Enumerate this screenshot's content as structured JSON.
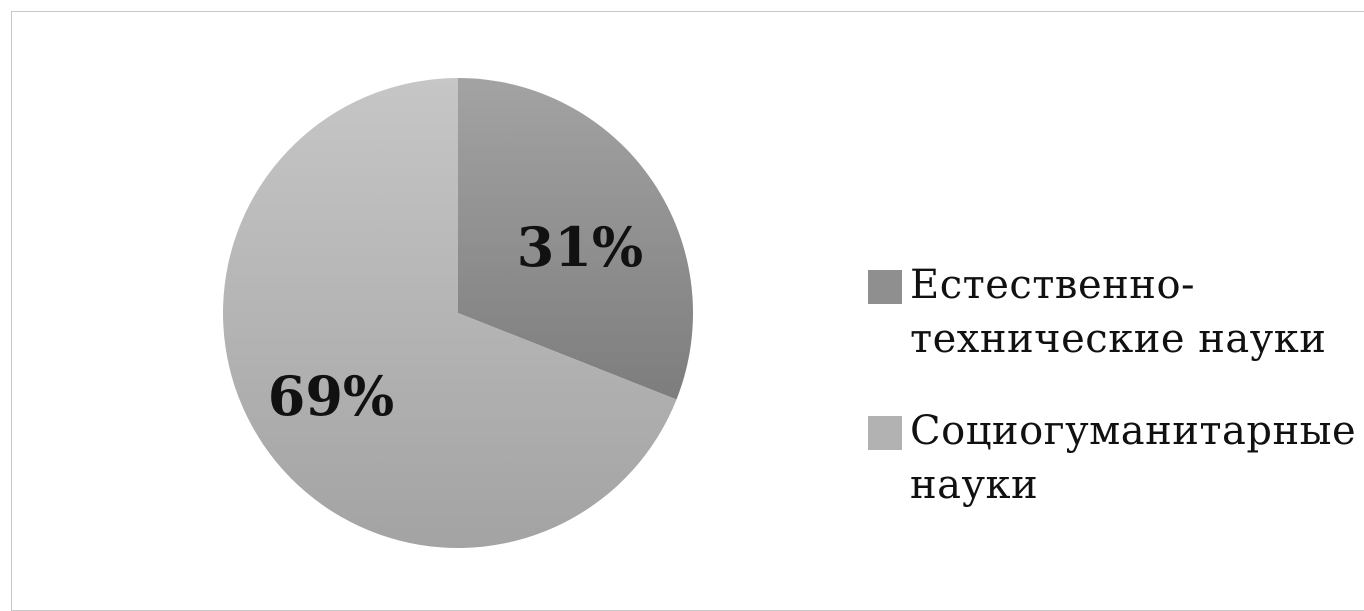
{
  "chart_data": {
    "type": "pie",
    "title": "",
    "slices": [
      {
        "name": "Естественно-технические науки",
        "value": 31,
        "label": "31%",
        "color": "#8f8f8f",
        "legend_lines": [
          "Естественно-",
          "технические науки"
        ]
      },
      {
        "name": "Социогуманитарные науки",
        "value": 69,
        "label": "69%",
        "color": "#b2b2b2",
        "legend_lines": [
          "Социогуманитарные",
          "науки"
        ]
      }
    ],
    "legend_position": "right"
  }
}
